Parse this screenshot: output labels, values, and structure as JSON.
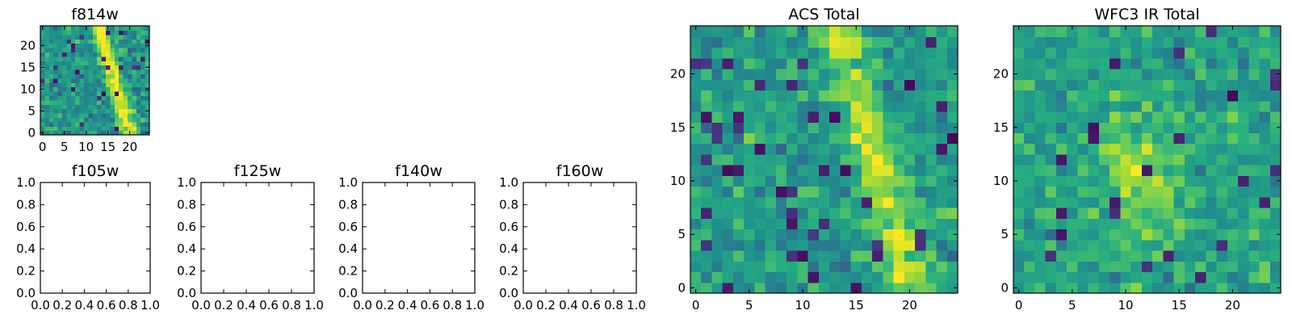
{
  "chart_data": [
    {
      "type": "heatmap",
      "title": "f814w",
      "grid_size": 25,
      "xticks": [
        0,
        5,
        10,
        15,
        20
      ],
      "yticks": [
        0,
        5,
        10,
        15,
        20
      ],
      "xlim": [
        -0.5,
        24.5
      ],
      "ylim": [
        -0.5,
        24.5
      ],
      "colormap": "viridis",
      "pattern": "noise with a bright diagonal streak running from about x=13 at the top to about x=20 at the bottom"
    },
    {
      "type": "heatmap",
      "title": "f105w",
      "empty": true,
      "xticks": [
        "0.0",
        "0.2",
        "0.4",
        "0.6",
        "0.8",
        "1.0"
      ],
      "yticks": [
        "0.0",
        "0.2",
        "0.4",
        "0.6",
        "0.8",
        "1.0"
      ]
    },
    {
      "type": "heatmap",
      "title": "f125w",
      "empty": true,
      "xticks": [
        "0.0",
        "0.2",
        "0.4",
        "0.6",
        "0.8",
        "1.0"
      ],
      "yticks": [
        "0.0",
        "0.2",
        "0.4",
        "0.6",
        "0.8",
        "1.0"
      ]
    },
    {
      "type": "heatmap",
      "title": "f140w",
      "empty": true,
      "xticks": [
        "0.0",
        "0.2",
        "0.4",
        "0.6",
        "0.8",
        "1.0"
      ],
      "yticks": [
        "0.0",
        "0.2",
        "0.4",
        "0.6",
        "0.8",
        "1.0"
      ]
    },
    {
      "type": "heatmap",
      "title": "f160w",
      "empty": true,
      "xticks": [
        "0.0",
        "0.2",
        "0.4",
        "0.6",
        "0.8",
        "1.0"
      ],
      "yticks": [
        "0.0",
        "0.2",
        "0.4",
        "0.6",
        "0.8",
        "1.0"
      ]
    },
    {
      "type": "heatmap",
      "title": "ACS Total",
      "grid_size": 25,
      "xticks": [
        0,
        5,
        10,
        15,
        20
      ],
      "yticks": [
        0,
        5,
        10,
        15,
        20
      ],
      "xlim": [
        -0.5,
        24.5
      ],
      "ylim": [
        -0.5,
        24.5
      ],
      "colormap": "viridis",
      "pattern": "noise with a bright diagonal streak from about x=14 at the top to about x=20 at the bottom"
    },
    {
      "type": "heatmap",
      "title": "WFC3 IR Total",
      "grid_size": 25,
      "xticks": [
        0,
        5,
        10,
        15,
        20
      ],
      "yticks": [
        0,
        5,
        10,
        15,
        20
      ],
      "xlim": [
        -0.5,
        24.5
      ],
      "ylim": [
        -0.5,
        24.5
      ],
      "colormap": "viridis",
      "pattern": "noise with a brighter region near x=11, y=10"
    }
  ]
}
